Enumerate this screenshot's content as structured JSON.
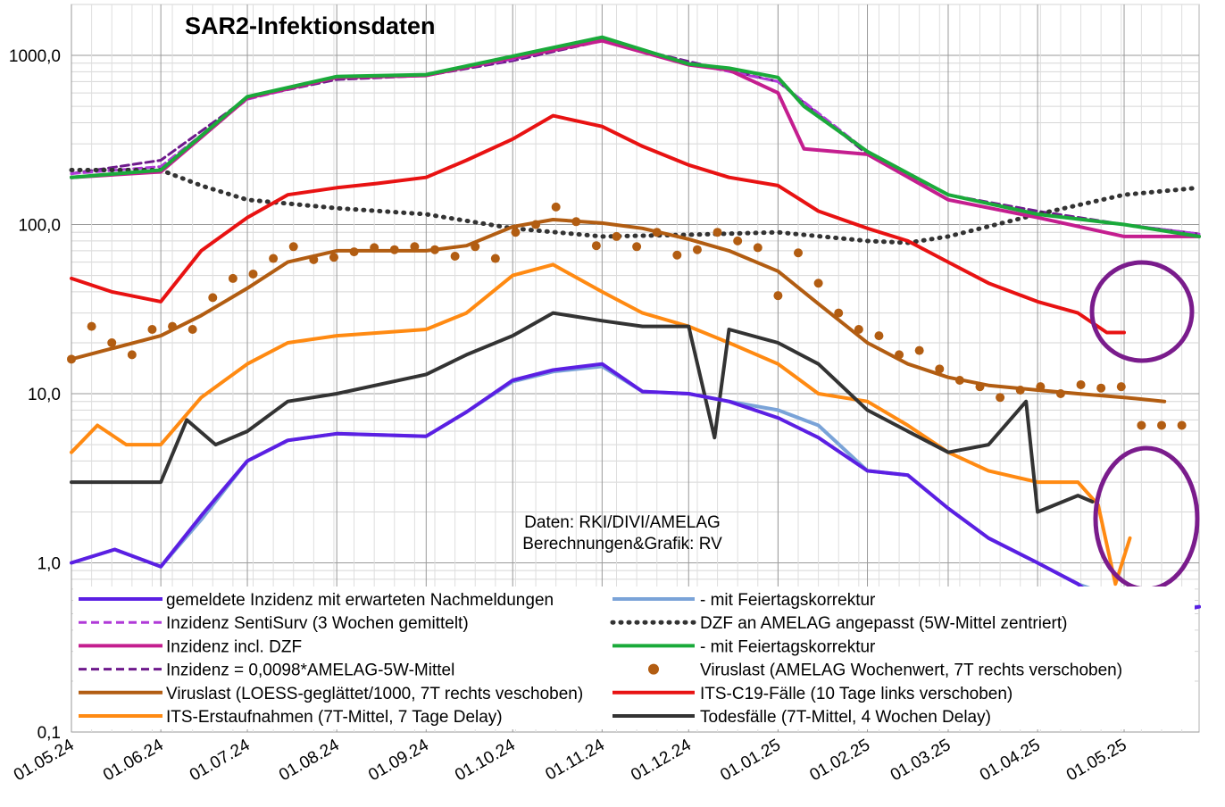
{
  "chart_data": {
    "type": "line",
    "title": "SAR2-Infektionsdaten",
    "annotation_lines": [
      "Daten: RKI/DIVI/AMELAG",
      "Berechnungen&Grafik: RV"
    ],
    "yscale": "log",
    "ylim": [
      0.1,
      2000
    ],
    "y_ticks": [
      {
        "v": 0.1,
        "label": "0,1"
      },
      {
        "v": 1,
        "label": "1,0"
      },
      {
        "v": 10,
        "label": "10,0"
      },
      {
        "v": 100,
        "label": "100,0"
      },
      {
        "v": 1000,
        "label": "1000,0"
      }
    ],
    "x_tick_labels": [
      "01.05.24",
      "01.06.24",
      "01.07.24",
      "01.08.24",
      "01.09.24",
      "01.10.24",
      "01.11.24",
      "01.12.24",
      "01.01.25",
      "01.02.25",
      "01.03.25",
      "01.04.25",
      "01.05.25"
    ],
    "xlim": [
      "01.05.24",
      "27.05.25"
    ],
    "grid": true,
    "legend_placement": "bottom",
    "series": [
      {
        "name": "gemeldete Inzidenz mit erwarteten Nachmeldungen",
        "color": "#5b1fe3",
        "style": "solid",
        "x": [
          "01.05.24",
          "16.05.24",
          "01.06.24",
          "15.06.24",
          "01.07.24",
          "15.07.24",
          "01.08.24",
          "01.09.24",
          "15.09.24",
          "01.10.24",
          "15.10.24",
          "01.11.24",
          "15.11.24",
          "01.12.24",
          "15.12.24",
          "01.01.25",
          "15.01.25",
          "01.02.25",
          "15.02.25",
          "01.03.25",
          "15.03.25",
          "01.04.25",
          "15.04.25",
          "01.05.25",
          "15.05.25",
          "27.05.25"
        ],
        "y": [
          1.0,
          1.2,
          0.95,
          1.9,
          4.0,
          5.3,
          5.8,
          5.6,
          7.8,
          12.0,
          13.8,
          15.0,
          10.3,
          10.0,
          9.0,
          7.2,
          5.5,
          3.5,
          3.3,
          2.1,
          1.4,
          1.0,
          0.75,
          0.45,
          0.5,
          0.55
        ]
      },
      {
        "name": "- mit Feiertagskorrektur",
        "color": "#7aa3d8",
        "style": "solid",
        "x": [
          "01.05.24",
          "16.05.24",
          "01.06.24",
          "15.06.24",
          "01.07.24",
          "15.07.24",
          "01.08.24",
          "01.09.24",
          "15.09.24",
          "01.10.24",
          "15.10.24",
          "01.11.24",
          "15.11.24",
          "01.12.24",
          "15.12.24",
          "01.01.25",
          "15.01.25",
          "01.02.25",
          "15.02.25",
          "01.03.25",
          "15.03.25",
          "01.04.25",
          "15.04.25",
          "01.05.25",
          "15.05.25",
          "27.05.25"
        ],
        "y": [
          1.0,
          1.2,
          0.95,
          1.8,
          4.0,
          5.3,
          5.8,
          5.6,
          7.8,
          11.8,
          13.5,
          14.5,
          10.3,
          10.0,
          9.0,
          8.0,
          6.5,
          3.5,
          3.3,
          2.1,
          1.4,
          1.0,
          0.75,
          0.6,
          0.55,
          0.55
        ]
      },
      {
        "name": "Inzidenz SentiSurv (3 Wochen gemittelt)",
        "color": "#b03ad8",
        "style": "dashed",
        "x": [
          "01.05.24",
          "01.06.24",
          "01.07.24",
          "01.08.24",
          "01.09.24",
          "01.10.24",
          "01.11.24",
          "01.12.24",
          "01.01.25",
          "01.02.25",
          "01.03.25",
          "01.04.25",
          "01.05.25",
          "27.05.25"
        ],
        "y": [
          200,
          220,
          550,
          740,
          770,
          950,
          1250,
          900,
          700,
          270,
          150,
          115,
          100,
          88
        ]
      },
      {
        "name": "DZF an AMELAG angepasst (5W-Mittel zentriert)",
        "color": "#333333",
        "style": "dotted",
        "x": [
          "01.05.24",
          "01.06.24",
          "15.06.24",
          "01.07.24",
          "01.08.24",
          "01.09.24",
          "01.10.24",
          "01.11.24",
          "01.12.24",
          "01.01.25",
          "01.02.25",
          "15.02.25",
          "01.03.25",
          "01.04.25",
          "01.05.25",
          "27.05.25"
        ],
        "y": [
          210,
          210,
          170,
          140,
          125,
          115,
          95,
          85,
          87,
          90,
          80,
          78,
          85,
          115,
          150,
          165
        ]
      },
      {
        "name": "Inzidenz incl. DZF",
        "color": "#c41e8f",
        "style": "solid",
        "x": [
          "01.05.24",
          "01.06.24",
          "01.07.24",
          "01.08.24",
          "01.09.24",
          "01.10.24",
          "01.11.24",
          "01.12.24",
          "15.12.24",
          "01.01.25",
          "10.01.25",
          "01.02.25",
          "01.03.25",
          "01.04.25",
          "01.05.25",
          "27.05.25"
        ],
        "y": [
          190,
          205,
          560,
          740,
          760,
          970,
          1220,
          880,
          820,
          600,
          280,
          260,
          140,
          110,
          85,
          85
        ]
      },
      {
        "name": "- mit Feiertagskorrektur",
        "color": "#1aaa3a",
        "style": "solid",
        "x": [
          "01.05.24",
          "01.06.24",
          "01.07.24",
          "01.08.24",
          "01.09.24",
          "01.10.24",
          "01.11.24",
          "01.12.24",
          "15.12.24",
          "01.01.25",
          "10.01.25",
          "01.02.25",
          "01.03.25",
          "01.04.25",
          "01.05.25",
          "27.05.25"
        ],
        "y": [
          190,
          210,
          570,
          750,
          770,
          990,
          1280,
          890,
          840,
          740,
          500,
          270,
          150,
          115,
          100,
          85
        ]
      },
      {
        "name": "Inzidenz = 0,0098*AMELAG-5W-Mittel",
        "color": "#6e1a8c",
        "style": "dashed",
        "x": [
          "01.05.24",
          "01.06.24",
          "01.07.24",
          "01.08.24",
          "01.09.24",
          "01.10.24",
          "01.11.24",
          "01.12.24",
          "01.01.25",
          "01.02.25",
          "01.03.25",
          "01.04.25",
          "01.05.25",
          "27.05.25"
        ],
        "y": [
          200,
          240,
          560,
          720,
          760,
          930,
          1220,
          920,
          700,
          260,
          150,
          120,
          100,
          88
        ]
      },
      {
        "name": "Viruslast (AMELAG Wochenwert, 7T rechts verschoben)",
        "color": "#b25d12",
        "style": "markers",
        "x": [
          "01.05.24",
          "08.05.24",
          "15.05.24",
          "22.05.24",
          "29.05.24",
          "05.06.24",
          "12.06.24",
          "19.06.24",
          "26.06.24",
          "03.07.24",
          "10.07.24",
          "17.07.24",
          "24.07.24",
          "31.07.24",
          "07.08.24",
          "14.08.24",
          "21.08.24",
          "28.08.24",
          "04.09.24",
          "11.09.24",
          "18.09.24",
          "25.09.24",
          "02.10.24",
          "09.10.24",
          "16.10.24",
          "23.10.24",
          "30.10.24",
          "06.11.24",
          "13.11.24",
          "20.11.24",
          "27.11.24",
          "04.12.24",
          "11.12.24",
          "18.12.24",
          "25.12.24",
          "01.01.25",
          "08.01.25",
          "15.01.25",
          "22.01.25",
          "29.01.25",
          "05.02.25",
          "12.02.25",
          "19.02.25",
          "26.02.25",
          "05.03.25",
          "12.03.25",
          "19.03.25",
          "26.03.25",
          "02.04.25",
          "09.04.25",
          "16.04.25",
          "23.04.25",
          "30.04.25",
          "07.05.25",
          "14.05.25",
          "21.05.25"
        ],
        "y": [
          16,
          25,
          20,
          17,
          24,
          25,
          24,
          37,
          48,
          51,
          63,
          74,
          62,
          64,
          69,
          73,
          71,
          74,
          71,
          65,
          74,
          63,
          90,
          100,
          127,
          104,
          75,
          85,
          74,
          90,
          66,
          71,
          90,
          80,
          73,
          38,
          68,
          45,
          30,
          24,
          22,
          17,
          18,
          14,
          12,
          11,
          9.5,
          10.5,
          11,
          10,
          11.3,
          10.8,
          11,
          6.5,
          6.5,
          6.5
        ]
      },
      {
        "name": "Viruslast (LOESS-geglättet/1000, 7T rechts veschoben)",
        "color": "#b25d12",
        "style": "solid",
        "x": [
          "01.05.24",
          "01.06.24",
          "15.06.24",
          "01.07.24",
          "15.07.24",
          "01.08.24",
          "01.09.24",
          "15.09.24",
          "01.10.24",
          "15.10.24",
          "01.11.24",
          "15.11.24",
          "01.12.24",
          "15.12.24",
          "01.01.25",
          "15.01.25",
          "01.02.25",
          "15.02.25",
          "01.03.25",
          "15.03.25",
          "01.04.25",
          "15.04.25",
          "01.05.25",
          "15.05.25"
        ],
        "y": [
          16,
          22,
          29,
          42,
          60,
          70,
          70,
          75,
          97,
          107,
          102,
          95,
          82,
          70,
          53,
          34,
          20,
          15,
          12.5,
          11.2,
          10.5,
          10.0,
          9.5,
          9.0
        ]
      },
      {
        "name": "ITS-C19-Fälle (10 Tage links verschoben)",
        "color": "#e81212",
        "style": "solid",
        "x": [
          "01.05.24",
          "15.05.24",
          "01.06.24",
          "15.06.24",
          "01.07.24",
          "15.07.24",
          "01.08.24",
          "15.08.24",
          "01.09.24",
          "15.09.24",
          "01.10.24",
          "15.10.24",
          "01.11.24",
          "15.11.24",
          "01.12.24",
          "15.12.24",
          "01.01.25",
          "15.01.25",
          "01.02.25",
          "15.02.25",
          "01.03.25",
          "15.03.25",
          "01.04.25",
          "15.04.25",
          "25.04.25",
          "01.05.25"
        ],
        "y": [
          48,
          40,
          35,
          70,
          110,
          150,
          165,
          175,
          190,
          240,
          320,
          440,
          380,
          290,
          225,
          190,
          170,
          120,
          95,
          80,
          60,
          45,
          35,
          30,
          23,
          23
        ]
      },
      {
        "name": "ITS-Erstaufnahmen (7T-Mittel, 7 Tage Delay)",
        "color": "#ff8a12",
        "style": "solid",
        "x": [
          "01.05.24",
          "10.05.24",
          "20.05.24",
          "01.06.24",
          "15.06.24",
          "01.07.24",
          "15.07.24",
          "01.08.24",
          "01.09.24",
          "15.09.24",
          "01.10.24",
          "15.10.24",
          "01.11.24",
          "15.11.24",
          "01.12.24",
          "15.12.24",
          "01.01.25",
          "15.01.25",
          "01.02.25",
          "15.02.25",
          "01.03.25",
          "15.03.25",
          "01.04.25",
          "15.04.25",
          "22.04.25",
          "28.04.25",
          "03.05.25"
        ],
        "y": [
          4.5,
          6.5,
          5.0,
          5.0,
          9.5,
          15,
          20,
          22,
          24,
          30,
          50,
          58,
          40,
          30,
          25,
          20,
          15,
          10,
          9,
          6.5,
          4.5,
          3.5,
          3.0,
          3.0,
          2.2,
          0.75,
          1.4
        ]
      },
      {
        "name": "Todesfälle (7T-Mittel, 4 Wochen Delay)",
        "color": "#333333",
        "style": "solid",
        "x": [
          "01.05.24",
          "15.05.24",
          "01.06.24",
          "10.06.24",
          "20.06.24",
          "01.07.24",
          "15.07.24",
          "01.08.24",
          "01.09.24",
          "15.09.24",
          "01.10.24",
          "15.10.24",
          "01.11.24",
          "15.11.24",
          "01.12.24",
          "10.12.24",
          "15.12.24",
          "01.01.25",
          "15.01.25",
          "01.02.25",
          "15.02.25",
          "01.03.25",
          "15.03.25",
          "28.03.25",
          "01.04.25",
          "15.04.25",
          "20.04.25"
        ],
        "y": [
          3.0,
          3.0,
          3.0,
          7,
          5,
          6,
          9,
          10,
          13,
          17,
          22,
          30,
          27,
          25,
          25,
          5.5,
          24,
          20,
          15,
          8,
          6,
          4.5,
          5,
          9,
          2,
          2.5,
          2.3
        ]
      }
    ]
  }
}
